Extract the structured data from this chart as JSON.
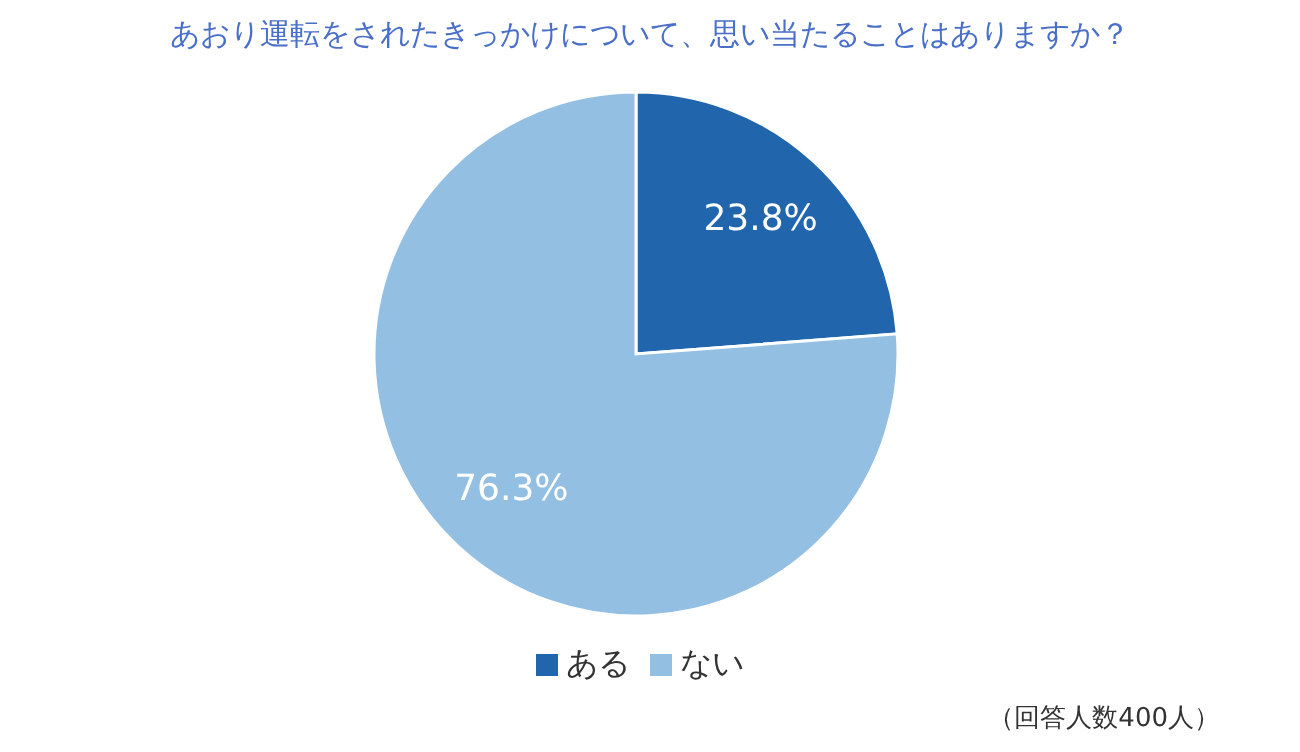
{
  "chart_data": {
    "type": "pie",
    "title": "あおり運転をされたきっかけについて、思い当たることはありますか？",
    "categories": [
      "ある",
      "ない"
    ],
    "values": [
      23.8,
      76.3
    ],
    "colors": [
      "#2166ac",
      "#93bfe3"
    ],
    "value_labels": [
      "23.8%",
      "76.3%"
    ],
    "legend": "bottom",
    "annotations": [
      "（回答人数400人）"
    ]
  }
}
